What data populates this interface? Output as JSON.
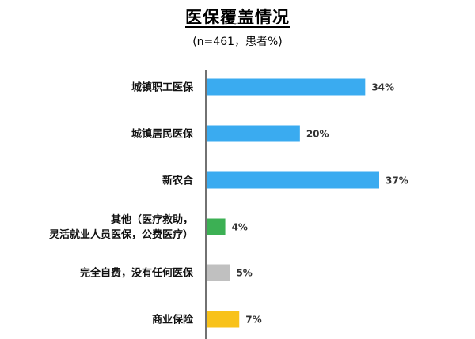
{
  "chart_data": {
    "type": "bar",
    "orientation": "horizontal",
    "title": "医保覆盖情况",
    "subtitle": "(n=461，患者%)",
    "categories": [
      [
        "城镇职工医保"
      ],
      [
        "城镇居民医保"
      ],
      [
        "新农合"
      ],
      [
        "其他（医疗救助，",
        "灵活就业人员医保，公费医疗）"
      ],
      [
        "完全自费，没有任何医保"
      ],
      [
        "商业保险"
      ]
    ],
    "values": [
      34,
      20,
      37,
      4,
      5,
      7
    ],
    "value_labels": [
      "34%",
      "20%",
      "37%",
      "4%",
      "5%",
      "7%"
    ],
    "colors": [
      "#3aabf0",
      "#3aabf0",
      "#3aabf0",
      "#3cb054",
      "#c0c0c0",
      "#f8c21a"
    ],
    "xlim": [
      0,
      100
    ],
    "grid": false,
    "legend": "none"
  }
}
